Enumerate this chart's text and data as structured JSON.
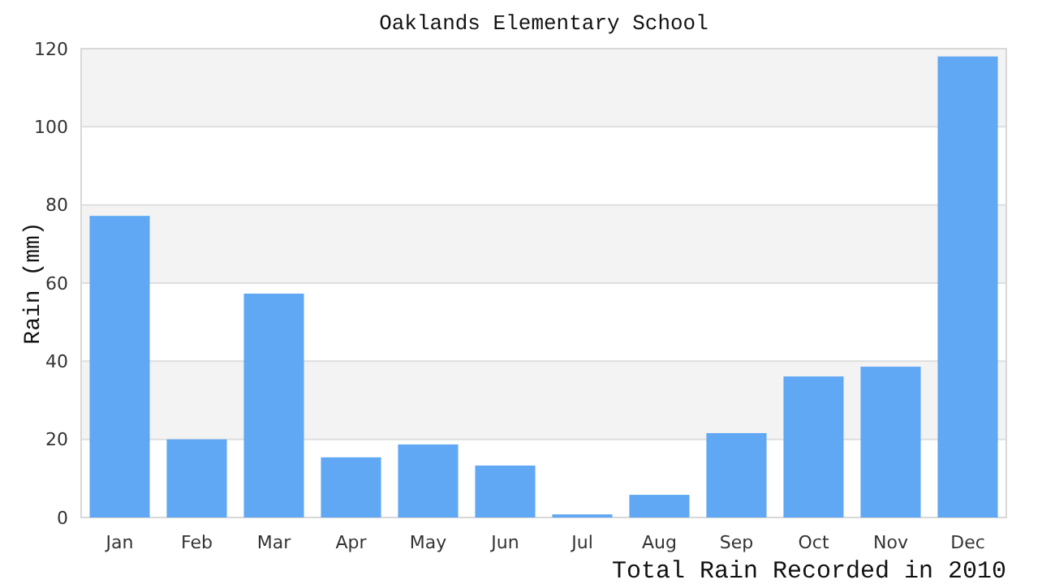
{
  "chart_data": {
    "type": "bar",
    "title": "Oaklands Elementary School",
    "xlabel": "Total Rain Recorded in 2010",
    "ylabel": "Rain (mm)",
    "categories": [
      "Jan",
      "Feb",
      "Mar",
      "Apr",
      "May",
      "Jun",
      "Jul",
      "Aug",
      "Sep",
      "Oct",
      "Nov",
      "Dec"
    ],
    "values": [
      77.2,
      20,
      57.3,
      15.4,
      18.7,
      13.3,
      0.8,
      5.8,
      21.6,
      36.1,
      38.6,
      118
    ],
    "color": "#60a8f4",
    "ylim": [
      0,
      120
    ],
    "yticks": [
      0,
      20,
      40,
      60,
      80,
      100,
      120
    ],
    "grid": "y"
  }
}
